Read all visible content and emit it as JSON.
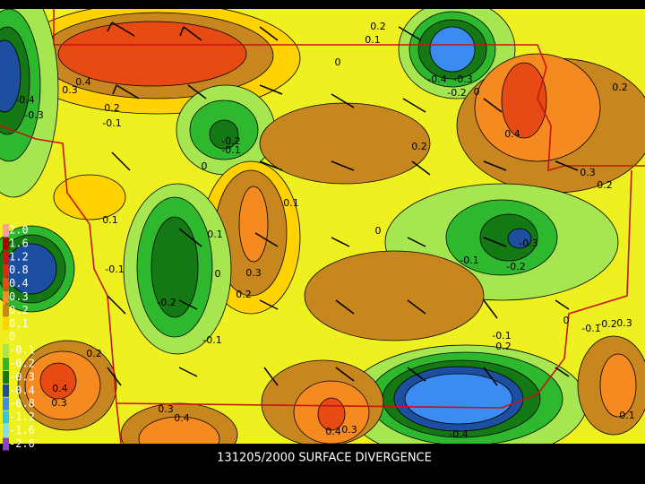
{
  "caption": "131205/2000 SURFACE DIVERGENCE",
  "legend": {
    "items": [
      {
        "label": "2.0",
        "color": "#ff9c9c"
      },
      {
        "label": "1.6",
        "color": "#b00000"
      },
      {
        "label": "1.2",
        "color": "#d01010"
      },
      {
        "label": "0.8",
        "color": "#e02a10"
      },
      {
        "label": "0.4",
        "color": "#e84a14"
      },
      {
        "label": "0.3",
        "color": "#f58a20"
      },
      {
        "label": "0.2",
        "color": "#c8861e"
      },
      {
        "label": "0.1",
        "color": "#ffd200"
      },
      {
        "label": "0",
        "color": "#eef020"
      },
      {
        "label": "-0.1",
        "color": "#a6e650"
      },
      {
        "label": "-0.2",
        "color": "#2eb82e"
      },
      {
        "label": "-0.3",
        "color": "#147814"
      },
      {
        "label": "-0.4",
        "color": "#1c4fa0"
      },
      {
        "label": "-0.8",
        "color": "#3a8cf0"
      },
      {
        "label": "-1.2",
        "color": "#30c8e8"
      },
      {
        "label": "-1.6",
        "color": "#80e0f0"
      },
      {
        "label": "-2.0",
        "color": "#9040d0"
      }
    ]
  },
  "contour_labels": [
    "0.4",
    "0.3",
    "-0.4",
    "-0.3",
    "0.2",
    "-0.1",
    "0.2",
    "0.1",
    "0",
    "-0.4",
    "-0.3",
    "-0.2",
    "0",
    "0.2",
    "0.4",
    "-0.2",
    "-0.1",
    "0",
    "0.2",
    "0.3",
    "0.2",
    "0.1",
    "0.1",
    "0.1",
    "0",
    "-0.3",
    "-0.1",
    "0",
    "0.3",
    "-0.1",
    "-0.2",
    "-0.2",
    "0.2",
    "0",
    "-0.1",
    "-0.2",
    "0.3",
    "-0.1",
    "-0.1",
    "0.2",
    "0.2",
    "0.4",
    "0.3",
    "0.3",
    "0.4",
    "0.1",
    "0.4",
    "0.3",
    "-0.4"
  ]
}
